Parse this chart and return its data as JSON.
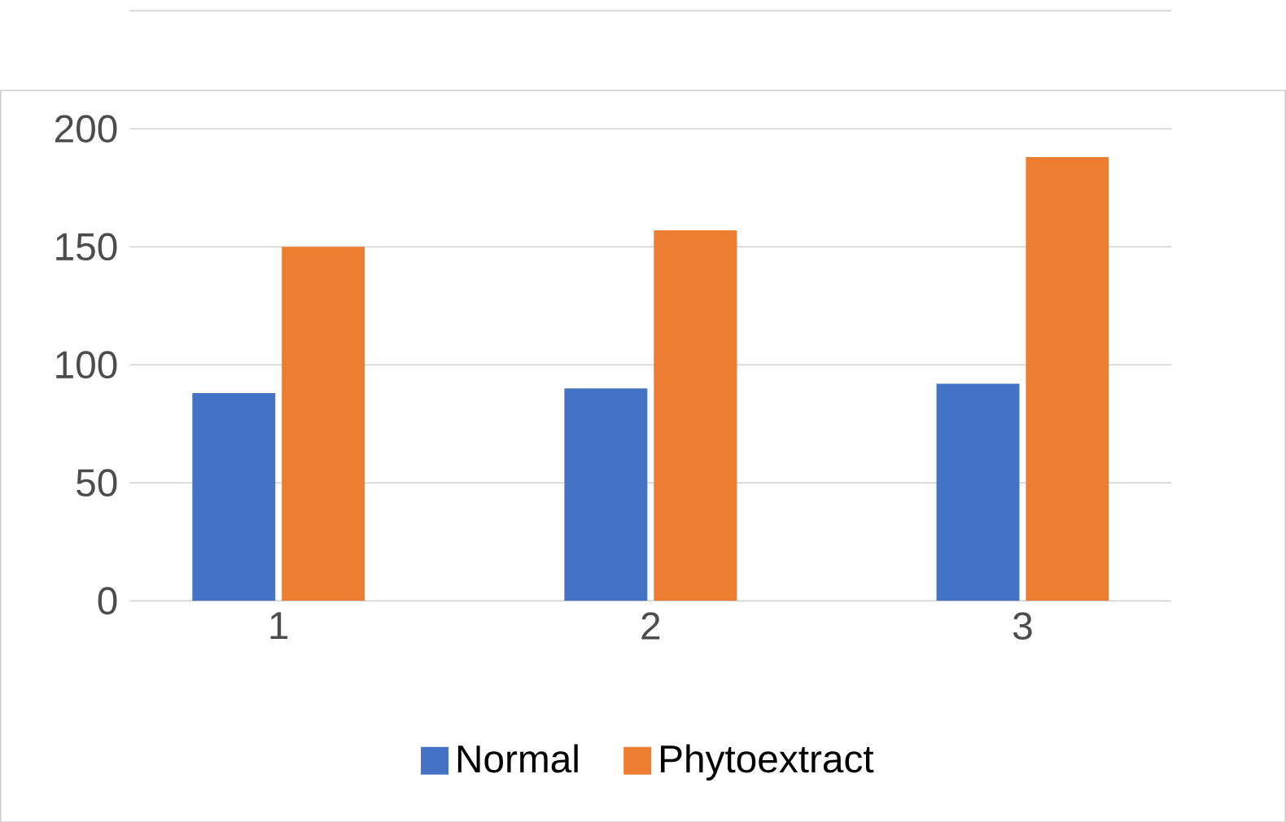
{
  "chart_data": {
    "type": "bar",
    "categories": [
      "1",
      "2",
      "3"
    ],
    "series": [
      {
        "name": "Normal",
        "color": "#4472c4",
        "values": [
          88,
          90,
          92
        ]
      },
      {
        "name": "Phytoextract",
        "color": "#ed7d31",
        "values": [
          150,
          157,
          188
        ]
      }
    ],
    "ylim": [
      0,
      250
    ],
    "yticks": [
      0,
      50,
      100,
      150,
      200,
      {
        "value": 250,
        "label": null
      }
    ],
    "grid": "y",
    "legend": "bottom"
  }
}
